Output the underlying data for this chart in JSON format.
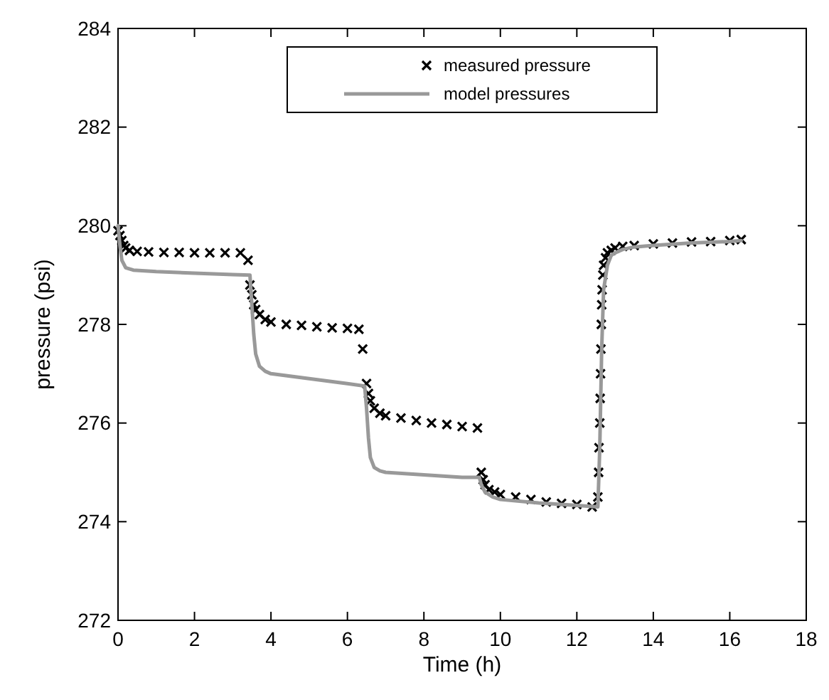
{
  "chart_data": {
    "type": "scatter",
    "xlabel": "Time (h)",
    "ylabel": "pressure (psi)",
    "xlim": [
      0,
      18
    ],
    "ylim": [
      272,
      284
    ],
    "xticks": [
      0,
      2,
      4,
      6,
      8,
      10,
      12,
      14,
      16,
      18
    ],
    "yticks": [
      272,
      274,
      276,
      278,
      280,
      282,
      284
    ],
    "legend": "top",
    "grid": false,
    "series": [
      {
        "name": "measured pressure",
        "marker": "cross",
        "color": "#000000",
        "x": [
          0,
          0.05,
          0.1,
          0.15,
          0.2,
          0.3,
          0.5,
          0.8,
          1.2,
          1.6,
          2,
          2.4,
          2.8,
          3.2,
          3.4,
          3.45,
          3.5,
          3.55,
          3.6,
          3.7,
          3.85,
          4,
          4.4,
          4.8,
          5.2,
          5.6,
          6,
          6.3,
          6.4,
          6.5,
          6.55,
          6.6,
          6.7,
          6.85,
          7,
          7.4,
          7.8,
          8.2,
          8.6,
          9,
          9.4,
          9.5,
          9.55,
          9.6,
          9.7,
          9.85,
          10,
          10.4,
          10.8,
          11.2,
          11.6,
          12,
          12.4,
          12.55,
          12.57,
          12.58,
          12.6,
          12.61,
          12.62,
          12.63,
          12.64,
          12.65,
          12.66,
          12.68,
          12.7,
          12.75,
          12.8,
          12.9,
          13,
          13.2,
          13.5,
          14,
          14.5,
          15,
          15.5,
          16,
          16.3
        ],
        "values": [
          279.9,
          279.8,
          279.7,
          279.6,
          279.55,
          279.5,
          279.48,
          279.47,
          279.46,
          279.46,
          279.45,
          279.45,
          279.45,
          279.45,
          279.3,
          278.8,
          278.6,
          278.4,
          278.3,
          278.2,
          278.1,
          278.05,
          278.0,
          277.98,
          277.95,
          277.93,
          277.92,
          277.9,
          277.5,
          276.8,
          276.6,
          276.45,
          276.3,
          276.2,
          276.15,
          276.1,
          276.05,
          276.0,
          275.97,
          275.93,
          275.9,
          275.0,
          274.85,
          274.75,
          274.65,
          274.6,
          274.55,
          274.5,
          274.45,
          274.4,
          274.37,
          274.35,
          274.3,
          274.5,
          275,
          275.5,
          276,
          276.5,
          277,
          277.5,
          278,
          278.4,
          278.7,
          279,
          279.2,
          279.35,
          279.45,
          279.5,
          279.55,
          279.58,
          279.6,
          279.63,
          279.65,
          279.67,
          279.68,
          279.7,
          279.72
        ]
      },
      {
        "name": "model pressures",
        "type": "line",
        "marker": "none",
        "line_style": "solid",
        "color": "#999999",
        "x": [
          0,
          0.05,
          0.1,
          0.2,
          0.4,
          1,
          2,
          3,
          3.45,
          3.5,
          3.55,
          3.6,
          3.7,
          3.85,
          4,
          5,
          6,
          6.45,
          6.5,
          6.55,
          6.6,
          6.7,
          6.85,
          7,
          8,
          9,
          9.45,
          9.5,
          9.6,
          9.8,
          10,
          11,
          12,
          12.55,
          12.6,
          12.65,
          12.7,
          12.8,
          12.9,
          13,
          13.2,
          13.5,
          14,
          15,
          16,
          16.3
        ],
        "values": [
          280.0,
          279.6,
          279.3,
          279.15,
          279.1,
          279.07,
          279.04,
          279.01,
          279.0,
          278.4,
          277.8,
          277.4,
          277.15,
          277.05,
          277.0,
          276.9,
          276.8,
          276.75,
          276.3,
          275.7,
          275.3,
          275.1,
          275.03,
          275.0,
          274.95,
          274.9,
          274.9,
          274.75,
          274.6,
          274.5,
          274.45,
          274.38,
          274.33,
          274.3,
          275.5,
          277.5,
          278.7,
          279.2,
          279.4,
          279.45,
          279.52,
          279.57,
          279.6,
          279.65,
          279.68,
          279.7
        ]
      }
    ]
  }
}
